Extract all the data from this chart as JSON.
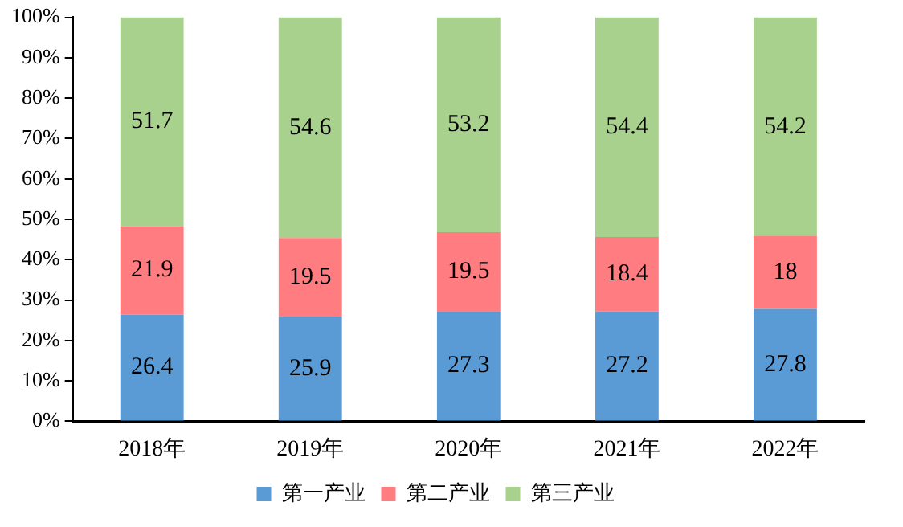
{
  "chart_data": {
    "type": "bar",
    "stacked": true,
    "categories": [
      "2018年",
      "2019年",
      "2020年",
      "2021年",
      "2022年"
    ],
    "series": [
      {
        "name": "第一产业",
        "color": "#5b9bd5",
        "values": [
          26.4,
          25.9,
          27.3,
          27.2,
          27.8
        ]
      },
      {
        "name": "第二产业",
        "color": "#ff7c80",
        "values": [
          21.9,
          19.5,
          19.5,
          18.4,
          18
        ]
      },
      {
        "name": "第三产业",
        "color": "#a9d18e",
        "values": [
          51.7,
          54.6,
          53.2,
          54.4,
          54.2
        ]
      }
    ],
    "ylim": [
      0,
      100
    ],
    "yticks": [
      {
        "value": 0,
        "label": "0%"
      },
      {
        "value": 10,
        "label": "10%"
      },
      {
        "value": 20,
        "label": "20%"
      },
      {
        "value": 30,
        "label": "30%"
      },
      {
        "value": 40,
        "label": "40%"
      },
      {
        "value": 50,
        "label": "50%"
      },
      {
        "value": 60,
        "label": "60%"
      },
      {
        "value": 70,
        "label": "70%"
      },
      {
        "value": 80,
        "label": "80%"
      },
      {
        "value": 90,
        "label": "90%"
      },
      {
        "value": 100,
        "label": "100%"
      }
    ],
    "data_labels": true,
    "grid": false,
    "legend": "bottom"
  }
}
